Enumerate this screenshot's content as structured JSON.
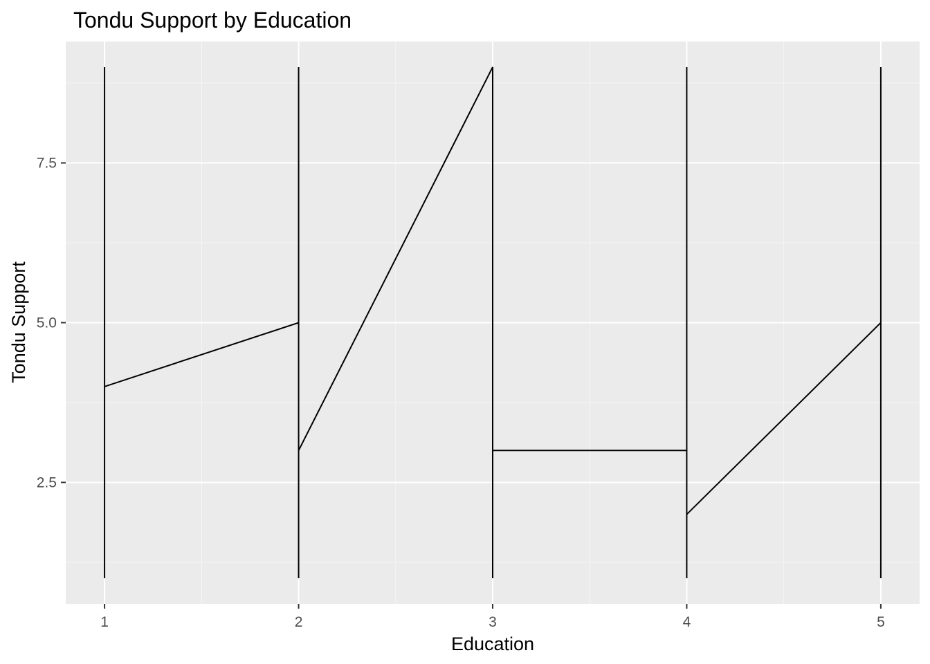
{
  "chart_data": {
    "type": "line",
    "title": "Tondu Support by Education",
    "xlabel": "Education",
    "ylabel": "Tondu Support",
    "xlim": [
      0.8,
      5.2
    ],
    "ylim": [
      0.6,
      9.4
    ],
    "x_ticks": [
      1,
      2,
      3,
      4,
      5
    ],
    "x_tick_labels": [
      "1",
      "2",
      "3",
      "4",
      "5"
    ],
    "y_ticks": [
      2.5,
      5.0,
      7.5
    ],
    "y_tick_labels": [
      "2.5",
      "5.0",
      "7.5"
    ],
    "grid": true,
    "legend": "none",
    "series": [
      {
        "points": [
          {
            "x": 1,
            "y": 1
          },
          {
            "x": 1,
            "y": 9
          },
          {
            "x": 1,
            "y": 4
          },
          {
            "x": 2,
            "y": 5
          },
          {
            "x": 2,
            "y": 1
          },
          {
            "x": 2,
            "y": 9
          },
          {
            "x": 2,
            "y": 3
          },
          {
            "x": 3,
            "y": 9
          },
          {
            "x": 3,
            "y": 1
          },
          {
            "x": 3,
            "y": 3
          },
          {
            "x": 4,
            "y": 3
          },
          {
            "x": 4,
            "y": 1
          },
          {
            "x": 4,
            "y": 9
          },
          {
            "x": 4,
            "y": 2
          },
          {
            "x": 5,
            "y": 5
          },
          {
            "x": 5,
            "y": 1
          },
          {
            "x": 5,
            "y": 9
          }
        ]
      }
    ]
  },
  "colors": {
    "panel_background": "#ebebeb",
    "grid_major": "#ffffff",
    "grid_minor": "#f5f5f5",
    "line": "#000000",
    "tick_label": "#4d4d4d",
    "text": "#000000"
  }
}
